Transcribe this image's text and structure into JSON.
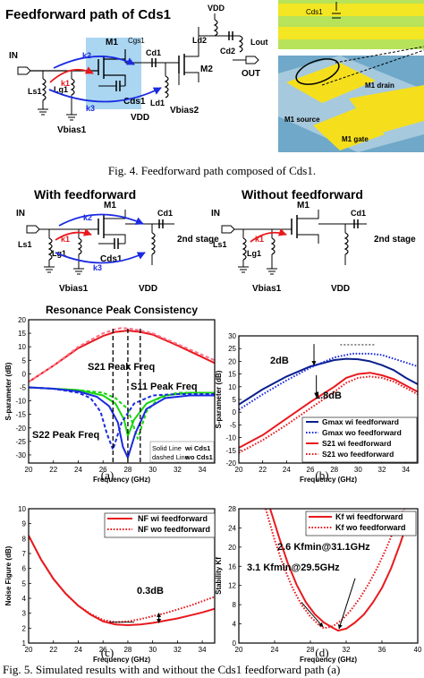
{
  "fig4": {
    "title": "Feedforward path of Cds1",
    "caption": "Fig. 4. Feedforward path composed of Cds1.",
    "labels": {
      "in": "IN",
      "out": "OUT",
      "vdd": "VDD",
      "ls1": "Ls1",
      "lg1": "Lg1",
      "m1": "M1",
      "m2": "M2",
      "cgs": "Cgs1",
      "cd1": "Cd1",
      "cds1": "Cds1",
      "ld1": "Ld1",
      "ld2": "Ld2",
      "cd2": "Cd2",
      "lout": "Lout",
      "vbias1": "Vbias1",
      "vbias2": "Vbias2",
      "k1": "k1",
      "k2": "k2",
      "k3": "k3"
    },
    "layout_labels": {
      "cds1": "Cds1",
      "m1_drain": "M1 drain",
      "m1_source": "M1 source",
      "m1_gate": "M1 gate"
    }
  },
  "fig5_schematics": {
    "left_title": "With feedforward",
    "right_title": "Without feedforward",
    "labels": {
      "in": "IN",
      "m1": "M1",
      "cd1": "Cd1",
      "ls1": "Ls1",
      "lg1": "Lg1",
      "cds1": "Cds1",
      "vbias1": "Vbias1",
      "vdd": "VDD",
      "stage": "2nd stage",
      "k1": "k1",
      "k2": "k2",
      "k3": "k3"
    }
  },
  "colors": {
    "red": "#e8191d",
    "blue": "#1b2be0",
    "green": "#17d40f",
    "pink": "#ff6f8a",
    "navy": "#0a1f8a",
    "highlight": "#8ec8ee"
  },
  "plots": {
    "a": {
      "sublabel": "(a)"
    },
    "b": {
      "sublabel": "(b)"
    },
    "c": {
      "sublabel": "(c)"
    },
    "d": {
      "sublabel": "(d)"
    }
  },
  "chart_data": [
    {
      "id": "a",
      "type": "line",
      "title": "Resonance Peak Consistency",
      "xlabel": "Frequency (GHz)",
      "ylabel": "S-parameter (dB)",
      "xlim": [
        20,
        35
      ],
      "ylim": [
        -33,
        20
      ],
      "xticks": [
        20,
        22,
        24,
        26,
        28,
        30,
        32,
        34
      ],
      "yticks": [
        -30,
        -25,
        -20,
        -15,
        -10,
        -5,
        0,
        5,
        10,
        15,
        20
      ],
      "series": [
        {
          "name": "S21",
          "style": "solid",
          "color": "#e8191d",
          "x": [
            20,
            22,
            24,
            26,
            27,
            28,
            29,
            30,
            32,
            35
          ],
          "y": [
            -3,
            3,
            9.5,
            14,
            15.5,
            16,
            15.5,
            14.5,
            10.5,
            4
          ]
        },
        {
          "name": "S21",
          "style": "dashed",
          "color": "#ff6f8a",
          "x": [
            20,
            22,
            24,
            26,
            27,
            27.5,
            28.5,
            30,
            32,
            35
          ],
          "y": [
            -3,
            3,
            10,
            15,
            16.5,
            17,
            16.5,
            15,
            11,
            5
          ]
        },
        {
          "name": "S11",
          "style": "solid",
          "color": "#17d40f",
          "x": [
            20,
            22,
            24,
            26,
            27,
            27.7,
            28,
            28.5,
            29.5,
            31,
            33,
            35
          ],
          "y": [
            -5,
            -5.5,
            -6,
            -8,
            -11,
            -17,
            -23,
            -17,
            -11,
            -8,
            -7,
            -7
          ]
        },
        {
          "name": "S11",
          "style": "dashed",
          "color": "#17d40f",
          "x": [
            20,
            22,
            24,
            26,
            27,
            28,
            28.8,
            29.5,
            30.5,
            32,
            35
          ],
          "y": [
            -5,
            -5.5,
            -6,
            -7,
            -9,
            -13,
            -24,
            -14,
            -9,
            -7,
            -7
          ]
        },
        {
          "name": "S22",
          "style": "solid",
          "color": "#1b2be0",
          "x": [
            20,
            22,
            24,
            25.5,
            26.5,
            27.2,
            27.6,
            28,
            28.6,
            29.5,
            31,
            33,
            35
          ],
          "y": [
            -5,
            -5.5,
            -6.5,
            -8.5,
            -12,
            -18,
            -27,
            -31,
            -22,
            -13,
            -9,
            -8,
            -8
          ]
        },
        {
          "name": "S22",
          "style": "dashed",
          "color": "#1b2be0",
          "x": [
            20,
            22,
            24,
            25,
            25.8,
            26.3,
            26.8,
            27.5,
            28.5,
            30,
            32,
            35
          ],
          "y": [
            -5,
            -5.5,
            -7,
            -9,
            -14,
            -22,
            -28,
            -18,
            -11,
            -8,
            -7.5,
            -7.5
          ]
        }
      ],
      "annotations": [
        "S21 Peak Freq",
        "S11 Peak Freq",
        "S22 Peak Freq"
      ],
      "legend_note": [
        "Solid Line",
        "wi Cds1",
        "dashed Line",
        "wo Cds1"
      ]
    },
    {
      "id": "b",
      "type": "line",
      "xlabel": "Frequency (GHz)",
      "ylabel": "S-parameter (dB)",
      "xlim": [
        20,
        35
      ],
      "ylim": [
        -20,
        30
      ],
      "xticks": [
        20,
        22,
        24,
        26,
        28,
        30,
        32,
        34
      ],
      "yticks": [
        -20,
        -15,
        -10,
        -5,
        0,
        5,
        10,
        15,
        20,
        25,
        30
      ],
      "series": [
        {
          "name": "Gmax wi feedforward",
          "style": "solid",
          "color": "#0a1f8a",
          "x": [
            20,
            22,
            24,
            26,
            28,
            29,
            30,
            31,
            32,
            33,
            34,
            35
          ],
          "y": [
            3,
            9,
            14,
            18,
            20.5,
            21,
            20.8,
            20,
            18.5,
            16.5,
            13.5,
            11
          ]
        },
        {
          "name": "Gmax wo feedforward",
          "style": "dotted",
          "color": "#1b2be0",
          "x": [
            20,
            22,
            24,
            26,
            28,
            29.5,
            31,
            32,
            33,
            34,
            35
          ],
          "y": [
            1,
            7,
            12.5,
            17.5,
            21.5,
            23,
            23,
            22.5,
            21,
            19.5,
            18
          ]
        },
        {
          "name": "S21 wi feedforward",
          "style": "solid",
          "color": "#e8191d",
          "x": [
            20,
            22,
            24,
            26,
            28,
            29,
            30,
            31,
            32,
            33,
            34,
            35
          ],
          "y": [
            -14,
            -9,
            -2.5,
            4,
            10,
            13.5,
            15,
            15.5,
            14.5,
            13,
            10.5,
            8
          ]
        },
        {
          "name": "S21 wo feedforward",
          "style": "dotted",
          "color": "#e8191d",
          "x": [
            20,
            22,
            24,
            26,
            28,
            29,
            30,
            31,
            32,
            33,
            34,
            35
          ],
          "y": [
            -16,
            -11,
            -5,
            1.5,
            8,
            11.5,
            13.5,
            14,
            13.5,
            12,
            9.5,
            7
          ]
        }
      ],
      "annotations": [
        "2dB",
        "1.8dB"
      ],
      "legend": "bottom-right"
    },
    {
      "id": "c",
      "type": "line",
      "xlabel": "Frequency (GHz)",
      "ylabel": "Noise Figure (dB)",
      "xlim": [
        20,
        35
      ],
      "ylim": [
        1,
        10
      ],
      "xticks": [
        20,
        22,
        24,
        26,
        28,
        30,
        32,
        34
      ],
      "yticks": [
        1,
        2,
        3,
        4,
        5,
        6,
        7,
        8,
        9,
        10
      ],
      "series": [
        {
          "name": "NF wi feedforward",
          "style": "solid",
          "color": "#e8191d",
          "x": [
            20,
            21,
            22,
            23,
            24,
            25,
            26,
            27,
            28,
            29,
            30,
            31,
            32,
            33,
            34,
            35
          ],
          "y": [
            8.2,
            6.6,
            5.3,
            4.3,
            3.5,
            2.9,
            2.45,
            2.25,
            2.2,
            2.25,
            2.35,
            2.5,
            2.65,
            2.85,
            3.05,
            3.3
          ]
        },
        {
          "name": "NF wo feedforward",
          "style": "dotted",
          "color": "#e8191d",
          "x": [
            20,
            21,
            22,
            23,
            24,
            25,
            26,
            27,
            28,
            29,
            30,
            31,
            32,
            33,
            34,
            35
          ],
          "y": [
            8.2,
            6.6,
            5.3,
            4.3,
            3.5,
            2.95,
            2.55,
            2.4,
            2.45,
            2.6,
            2.8,
            3.0,
            3.25,
            3.5,
            3.8,
            4.1
          ]
        }
      ],
      "annotations": [
        "0.3dB"
      ],
      "legend": "top-right"
    },
    {
      "id": "d",
      "type": "line",
      "xlabel": "Frequency (GHz)",
      "ylabel": "Stability Kf",
      "xlim": [
        20,
        40
      ],
      "ylim": [
        0,
        28
      ],
      "xticks": [
        20,
        24,
        28,
        32,
        36,
        40
      ],
      "yticks": [
        0,
        4,
        8,
        12,
        16,
        20,
        24,
        28
      ],
      "series": [
        {
          "name": "Kf wi feedforward",
          "style": "solid",
          "color": "#e8191d",
          "x": [
            23.5,
            24.5,
            25.5,
            26.5,
            27.5,
            28.5,
            29.5,
            30.5,
            31.1,
            32,
            33,
            34,
            35,
            36,
            37,
            38,
            39
          ],
          "y": [
            28,
            22,
            16.5,
            12,
            8.5,
            6,
            4.3,
            3.2,
            2.6,
            3,
            4.3,
            6,
            8.5,
            11.5,
            15.5,
            20.5,
            26
          ]
        },
        {
          "name": "Kf wo feedforward",
          "style": "dotted",
          "color": "#e8191d",
          "x": [
            23,
            24,
            25,
            26,
            27,
            28,
            29,
            29.5,
            30.5,
            31.5,
            32.5,
            33.5,
            34.5,
            35.5,
            36.5,
            37.5,
            38.5
          ],
          "y": [
            28,
            21.5,
            16,
            11.5,
            8,
            5.5,
            3.7,
            3.1,
            3.5,
            4.8,
            6.8,
            9.3,
            12.3,
            15.8,
            19.8,
            24.3,
            28
          ]
        }
      ],
      "annotations": [
        "2.6 Kfmin@31.1GHz",
        "3.1 Kfmin@29.5GHz"
      ],
      "legend": "top-right"
    }
  ],
  "caption_bottom": "Fig. 5. Simulated results with and without the Cds1 feedforward path (a)"
}
